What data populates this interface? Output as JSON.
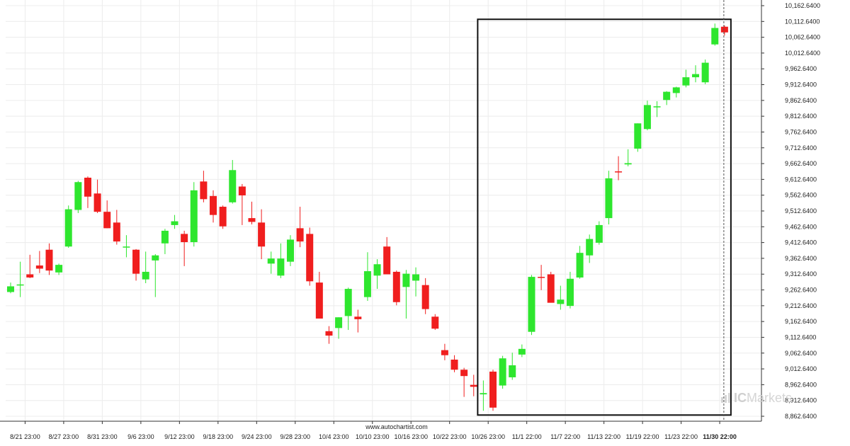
{
  "colors": {
    "bullish": "#2ee62e",
    "bearish": "#f01e1e",
    "frame": "#111111",
    "grid": "#ececec",
    "axis": "#333333"
  },
  "watermark": {
    "text_ic": "IC",
    "text_rest": "Markets",
    "icon": "ic-markets-logo-icon"
  },
  "footer": {
    "source": "www.autochartist.com"
  },
  "chart_data": {
    "type": "candlestick",
    "ylim": [
      8837.64,
      10177.64
    ],
    "y_ticks": [
      "10,162.6400",
      "10,112.6400",
      "10,062.6400",
      "10,012.6400",
      "9,962.6400",
      "9,912.6400",
      "9,862.6400",
      "9,812.6400",
      "9,762.6400",
      "9,712.6400",
      "9,662.6400",
      "9,612.6400",
      "9,562.6400",
      "9,512.6400",
      "9,462.6400",
      "9,412.6400",
      "9,362.6400",
      "9,312.6400",
      "9,262.6400",
      "9,212.6400",
      "9,162.6400",
      "9,112.6400",
      "9,062.6400",
      "9,012.6400",
      "8,962.6400",
      "8,912.6400",
      "8,862.6400"
    ],
    "x_ticks": [
      {
        "label": "8/21 23:00",
        "index": 1.5
      },
      {
        "label": "8/27 23:00",
        "index": 5.5
      },
      {
        "label": "8/31 23:00",
        "index": 9.5
      },
      {
        "label": "9/6 23:00",
        "index": 13.5
      },
      {
        "label": "9/12 23:00",
        "index": 17.5
      },
      {
        "label": "9/18 23:00",
        "index": 21.5
      },
      {
        "label": "9/24 23:00",
        "index": 25.5
      },
      {
        "label": "9/28 23:00",
        "index": 29.5
      },
      {
        "label": "10/4 23:00",
        "index": 33.5
      },
      {
        "label": "10/10 23:00",
        "index": 37.5
      },
      {
        "label": "10/16 23:00",
        "index": 41.5
      },
      {
        "label": "10/22 23:00",
        "index": 45.5
      },
      {
        "label": "10/26 23:00",
        "index": 49.5
      },
      {
        "label": "11/1 22:00",
        "index": 53.5
      },
      {
        "label": "11/7 22:00",
        "index": 57.5
      },
      {
        "label": "11/13 22:00",
        "index": 61.5
      },
      {
        "label": "11/19 22:00",
        "index": 65.5
      },
      {
        "label": "11/23 22:00",
        "index": 69.5
      },
      {
        "label": "11/30 22:00",
        "index": 73.5,
        "highlight": true
      }
    ],
    "candles": [
      {
        "o": 9256,
        "h": 9286,
        "l": 9252,
        "c": 9274
      },
      {
        "o": 9278,
        "h": 9352,
        "l": 9240,
        "c": 9280
      },
      {
        "o": 9312,
        "h": 9374,
        "l": 9300,
        "c": 9302
      },
      {
        "o": 9340,
        "h": 9386,
        "l": 9316,
        "c": 9330
      },
      {
        "o": 9390,
        "h": 9410,
        "l": 9310,
        "c": 9324
      },
      {
        "o": 9318,
        "h": 9346,
        "l": 9310,
        "c": 9342
      },
      {
        "o": 9400,
        "h": 9530,
        "l": 9396,
        "c": 9518
      },
      {
        "o": 9516,
        "h": 9608,
        "l": 9506,
        "c": 9604
      },
      {
        "o": 9618,
        "h": 9622,
        "l": 9522,
        "c": 9558
      },
      {
        "o": 9568,
        "h": 9612,
        "l": 9506,
        "c": 9510
      },
      {
        "o": 9510,
        "h": 9546,
        "l": 9458,
        "c": 9458
      },
      {
        "o": 9476,
        "h": 9516,
        "l": 9406,
        "c": 9416
      },
      {
        "o": 9400,
        "h": 9436,
        "l": 9366,
        "c": 9400
      },
      {
        "o": 9390,
        "h": 9392,
        "l": 9292,
        "c": 9314
      },
      {
        "o": 9296,
        "h": 9384,
        "l": 9284,
        "c": 9320
      },
      {
        "o": 9356,
        "h": 9376,
        "l": 9240,
        "c": 9372
      },
      {
        "o": 9410,
        "h": 9456,
        "l": 9376,
        "c": 9450
      },
      {
        "o": 9468,
        "h": 9500,
        "l": 9456,
        "c": 9480
      },
      {
        "o": 9440,
        "h": 9450,
        "l": 9338,
        "c": 9414
      },
      {
        "o": 9414,
        "h": 9604,
        "l": 9400,
        "c": 9578
      },
      {
        "o": 9606,
        "h": 9640,
        "l": 9540,
        "c": 9550
      },
      {
        "o": 9560,
        "h": 9578,
        "l": 9476,
        "c": 9500
      },
      {
        "o": 9526,
        "h": 9530,
        "l": 9456,
        "c": 9464
      },
      {
        "o": 9540,
        "h": 9674,
        "l": 9536,
        "c": 9642
      },
      {
        "o": 9590,
        "h": 9598,
        "l": 9468,
        "c": 9562
      },
      {
        "o": 9490,
        "h": 9542,
        "l": 9470,
        "c": 9478
      },
      {
        "o": 9476,
        "h": 9518,
        "l": 9360,
        "c": 9400
      },
      {
        "o": 9346,
        "h": 9384,
        "l": 9314,
        "c": 9362
      },
      {
        "o": 9308,
        "h": 9410,
        "l": 9300,
        "c": 9362
      },
      {
        "o": 9352,
        "h": 9436,
        "l": 9338,
        "c": 9422
      },
      {
        "o": 9458,
        "h": 9526,
        "l": 9398,
        "c": 9416
      },
      {
        "o": 9440,
        "h": 9460,
        "l": 9276,
        "c": 9290
      },
      {
        "o": 9286,
        "h": 9320,
        "l": 9176,
        "c": 9172
      },
      {
        "o": 9132,
        "h": 9148,
        "l": 9092,
        "c": 9118
      },
      {
        "o": 9142,
        "h": 9176,
        "l": 9108,
        "c": 9176
      },
      {
        "o": 9180,
        "h": 9270,
        "l": 9136,
        "c": 9266
      },
      {
        "o": 9178,
        "h": 9200,
        "l": 9128,
        "c": 9170
      },
      {
        "o": 9240,
        "h": 9382,
        "l": 9228,
        "c": 9322
      },
      {
        "o": 9308,
        "h": 9360,
        "l": 9266,
        "c": 9344
      },
      {
        "o": 9400,
        "h": 9430,
        "l": 9320,
        "c": 9312
      },
      {
        "o": 9320,
        "h": 9324,
        "l": 9214,
        "c": 9224
      },
      {
        "o": 9272,
        "h": 9326,
        "l": 9172,
        "c": 9314
      },
      {
        "o": 9292,
        "h": 9334,
        "l": 9242,
        "c": 9312
      },
      {
        "o": 9278,
        "h": 9300,
        "l": 9186,
        "c": 9202
      },
      {
        "o": 9178,
        "h": 9186,
        "l": 9136,
        "c": 9140
      },
      {
        "o": 9072,
        "h": 9092,
        "l": 9040,
        "c": 9056
      },
      {
        "o": 9042,
        "h": 9056,
        "l": 9002,
        "c": 9010
      },
      {
        "o": 9010,
        "h": 9016,
        "l": 8924,
        "c": 8990
      },
      {
        "o": 8962,
        "h": 8994,
        "l": 8926,
        "c": 8956
      },
      {
        "o": 8932,
        "h": 8976,
        "l": 8880,
        "c": 8936
      },
      {
        "o": 9004,
        "h": 9010,
        "l": 8880,
        "c": 8890
      },
      {
        "o": 8960,
        "h": 9054,
        "l": 8950,
        "c": 9046
      },
      {
        "o": 8986,
        "h": 9064,
        "l": 8978,
        "c": 9024
      },
      {
        "o": 9058,
        "h": 9090,
        "l": 9050,
        "c": 9076
      },
      {
        "o": 9130,
        "h": 9310,
        "l": 9120,
        "c": 9304
      },
      {
        "o": 9304,
        "h": 9342,
        "l": 9262,
        "c": 9302
      },
      {
        "o": 9312,
        "h": 9320,
        "l": 9226,
        "c": 9222
      },
      {
        "o": 9218,
        "h": 9276,
        "l": 9200,
        "c": 9232
      },
      {
        "o": 9212,
        "h": 9320,
        "l": 9204,
        "c": 9298
      },
      {
        "o": 9302,
        "h": 9402,
        "l": 9298,
        "c": 9380
      },
      {
        "o": 9372,
        "h": 9438,
        "l": 9348,
        "c": 9424
      },
      {
        "o": 9412,
        "h": 9480,
        "l": 9406,
        "c": 9468
      },
      {
        "o": 9490,
        "h": 9640,
        "l": 9470,
        "c": 9616
      },
      {
        "o": 9638,
        "h": 9686,
        "l": 9610,
        "c": 9636
      },
      {
        "o": 9660,
        "h": 9708,
        "l": 9654,
        "c": 9664
      },
      {
        "o": 9710,
        "h": 9790,
        "l": 9700,
        "c": 9790
      },
      {
        "o": 9772,
        "h": 9862,
        "l": 9768,
        "c": 9848
      },
      {
        "o": 9844,
        "h": 9860,
        "l": 9810,
        "c": 9844
      },
      {
        "o": 9864,
        "h": 9892,
        "l": 9848,
        "c": 9890
      },
      {
        "o": 9886,
        "h": 9906,
        "l": 9872,
        "c": 9904
      },
      {
        "o": 9910,
        "h": 9960,
        "l": 9904,
        "c": 9936
      },
      {
        "o": 9936,
        "h": 9974,
        "l": 9920,
        "c": 9946
      },
      {
        "o": 9920,
        "h": 9992,
        "l": 9914,
        "c": 9982
      },
      {
        "o": 10040,
        "h": 10106,
        "l": 10036,
        "c": 10092
      },
      {
        "o": 10096,
        "h": 10100,
        "l": 10068,
        "c": 10078
      }
    ]
  }
}
